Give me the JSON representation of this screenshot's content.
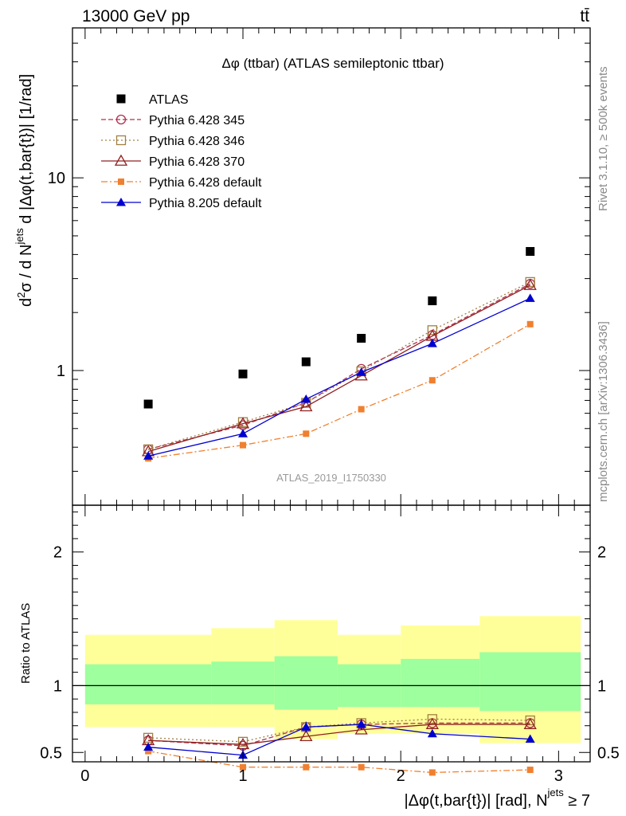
{
  "header": {
    "left": "13000 GeV pp",
    "right": "tt̄"
  },
  "side_labels": {
    "rivet": "Rivet 3.1.10, ≥ 500k events",
    "mcplots": "mcplots.cern.ch [arXiv:1306.3436]"
  },
  "chart_data": {
    "type": "line",
    "title": "Δφ (ttbar) (ATLAS semileptonic ttbar)",
    "watermark": "ATLAS_2019_I1750330",
    "ylabel": "d²σ / d Nʲᵉᵗˢ d |Δφ(t,bar{t})| [1/rad]",
    "ylabel_parts": {
      "d": "d",
      "sup2": "2",
      "sigma_div": "σ / d N",
      "jets": "jets",
      "rest": " d |Δφ(t,bar{t})| [1/rad]"
    },
    "xlabel": "|Δφ(t,bar{t})| [rad], Nʲᵉᵗˢ ≥ 7",
    "xlabel_parts": {
      "main": "|Δφ(t,bar{t})| [rad], N",
      "jets": "jets",
      "tail": " ≥ 7"
    },
    "ratio_ylabel": "Ratio to ATLAS",
    "xlim": [
      -0.08,
      3.2
    ],
    "ylim_main": [
      0.2,
      60
    ],
    "ylim_ratio": [
      0.43,
      2.35
    ],
    "yscale_main": "log",
    "xticks": [
      "0",
      "1",
      "2",
      "3"
    ],
    "xtick_values": [
      0,
      1,
      2,
      3
    ],
    "yticks_main": [
      "1",
      "10"
    ],
    "ytick_values_main": [
      1,
      10
    ],
    "yticks_ratio": [
      "0.5",
      "1",
      "2"
    ],
    "ytick_values_ratio": [
      0.5,
      1,
      2
    ],
    "x": [
      0.4,
      1.0,
      1.4,
      1.75,
      2.2,
      2.82
    ],
    "bins": [
      [
        0.0,
        0.8
      ],
      [
        0.8,
        1.2
      ],
      [
        1.2,
        1.6
      ],
      [
        1.6,
        2.0
      ],
      [
        2.0,
        2.5
      ],
      [
        2.5,
        3.14
      ]
    ],
    "data": {
      "name": "ATLAS",
      "values": [
        0.67,
        0.96,
        1.11,
        1.47,
        2.3,
        4.15
      ],
      "band_green": [
        [
          0.86,
          1.16
        ],
        [
          0.86,
          1.18
        ],
        [
          0.82,
          1.22
        ],
        [
          0.84,
          1.16
        ],
        [
          0.84,
          1.2
        ],
        [
          0.81,
          1.25
        ]
      ],
      "band_yellow": [
        [
          0.69,
          1.38
        ],
        [
          0.69,
          1.43
        ],
        [
          0.6,
          1.49
        ],
        [
          0.64,
          1.38
        ],
        [
          0.64,
          1.45
        ],
        [
          0.57,
          1.52
        ]
      ]
    },
    "series": [
      {
        "name": "Pythia 6.428 345",
        "values": [
          0.39,
          0.52,
          0.68,
          1.02,
          1.53,
          2.82
        ],
        "ratio": [
          0.59,
          0.55,
          0.69,
          0.71,
          0.72,
          0.72
        ],
        "ratio_err": [
          0,
          0,
          0,
          0,
          0,
          0
        ],
        "color": "#b03050",
        "dash": "6,3",
        "marker": "circle-open"
      },
      {
        "name": "Pythia 6.428 346",
        "values": [
          0.39,
          0.54,
          0.68,
          0.99,
          1.62,
          2.88
        ],
        "ratio": [
          0.61,
          0.58,
          0.69,
          0.72,
          0.75,
          0.74
        ],
        "ratio_err": [
          0,
          0,
          0,
          0,
          0,
          0
        ],
        "color": "#a08040",
        "dash": "2,3",
        "marker": "square-open"
      },
      {
        "name": "Pythia 6.428 370",
        "values": [
          0.38,
          0.53,
          0.65,
          0.94,
          1.51,
          2.77
        ],
        "ratio": [
          0.59,
          0.56,
          0.62,
          0.67,
          0.71,
          0.71
        ],
        "ratio_err": [
          0,
          0,
          0,
          0,
          0,
          0
        ],
        "color": "#902020",
        "dash": "",
        "marker": "triangle-open"
      },
      {
        "name": "Pythia 6.428 default",
        "values": [
          0.35,
          0.41,
          0.47,
          0.63,
          0.89,
          1.74
        ],
        "ratio": [
          0.51,
          0.39,
          0.39,
          0.39,
          0.35,
          0.37
        ],
        "ratio_err": [
          0.01,
          0.01,
          0.01,
          0.01,
          0.01,
          0.01
        ],
        "color": "#f08030",
        "dash": "8,3,2,3",
        "marker": "square-filled"
      },
      {
        "name": "Pythia 8.205 default",
        "values": [
          0.36,
          0.47,
          0.71,
          0.98,
          1.38,
          2.37
        ],
        "ratio": [
          0.54,
          0.48,
          0.69,
          0.71,
          0.64,
          0.6
        ],
        "ratio_err": [
          0.015,
          0.05,
          0.04,
          0.04,
          0.02,
          0.015
        ],
        "color": "#0000d0",
        "dash": "",
        "marker": "triangle-filled"
      }
    ],
    "legend_placement": "top-left"
  }
}
